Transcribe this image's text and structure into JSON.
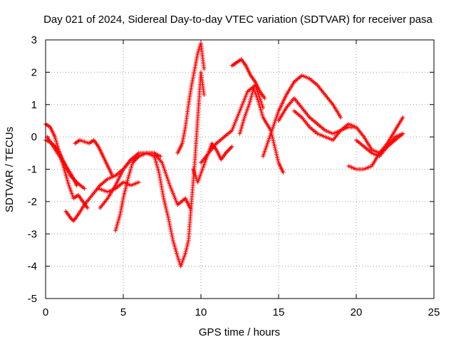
{
  "chart_data": {
    "type": "scatter",
    "title": "Day 021 of 2024, Sidereal Day-to-day VTEC variation (SDTVAR) for receiver pasa",
    "xlabel": "GPS time / hours",
    "ylabel": "SDTVAR / TECUs",
    "xlim": [
      0,
      25
    ],
    "ylim": [
      -5,
      3
    ],
    "x_ticks": [
      0,
      5,
      10,
      15,
      20,
      25
    ],
    "y_ticks": [
      -5,
      -4,
      -3,
      -2,
      -1,
      0,
      1,
      2,
      3
    ],
    "x_tick_labels": [
      "0",
      "5",
      "10",
      "15",
      "20",
      "25"
    ],
    "y_tick_labels": [
      "-5",
      "-4",
      "-3",
      "-2",
      "-1",
      "0",
      "1",
      "2",
      "3"
    ],
    "grid": true,
    "legend": "none",
    "marker": "plus",
    "color": "#ff0000",
    "series": [
      {
        "x": [
          0.0,
          0.3,
          0.6,
          0.9,
          1.2,
          1.5,
          1.8,
          2.1,
          2.4,
          2.7
        ],
        "y": [
          0.4,
          0.3,
          0.0,
          -0.5,
          -1.0,
          -1.5,
          -1.9,
          -1.8,
          -2.0,
          -2.2
        ]
      },
      {
        "x": [
          0.0,
          0.4,
          0.8,
          1.2,
          1.6,
          2.0,
          2.5
        ],
        "y": [
          -0.1,
          -0.2,
          -0.4,
          -0.8,
          -1.2,
          -1.4,
          -1.6
        ]
      },
      {
        "x": [
          0.1,
          0.5,
          0.9,
          1.3,
          1.7,
          2.0
        ],
        "y": [
          0.0,
          -0.3,
          -0.6,
          -0.9,
          -1.2,
          -1.5
        ]
      },
      {
        "x": [
          1.3,
          1.6,
          1.8,
          2.1,
          2.5,
          3.0,
          3.5,
          4.0,
          4.5,
          5.0,
          5.5,
          6.0,
          6.5,
          7.0
        ],
        "y": [
          -2.3,
          -2.5,
          -2.6,
          -2.4,
          -2.1,
          -1.8,
          -1.5,
          -1.3,
          -1.2,
          -1.0,
          -0.7,
          -0.5,
          -0.5,
          -0.6
        ]
      },
      {
        "x": [
          1.9,
          2.2,
          2.5,
          2.8,
          3.1,
          3.4,
          3.7,
          4.0,
          4.3
        ],
        "y": [
          -0.2,
          -0.1,
          -0.15,
          -0.2,
          -0.1,
          -0.3,
          -0.6,
          -0.9,
          -1.2
        ]
      },
      {
        "x": [
          3.4,
          4.0,
          4.5,
          5.0,
          5.5,
          6.0
        ],
        "y": [
          -1.6,
          -1.7,
          -1.6,
          -1.4,
          -1.5,
          -1.4
        ]
      },
      {
        "x": [
          3.5,
          4.0,
          4.5,
          5.0,
          5.5,
          6.0,
          6.5,
          7.0,
          7.5,
          8.0,
          8.5,
          9.0,
          9.3
        ],
        "y": [
          -2.2,
          -1.9,
          -1.5,
          -1.0,
          -0.7,
          -0.6,
          -0.5,
          -0.5,
          -0.8,
          -1.5,
          -2.1,
          -1.9,
          -2.2
        ]
      },
      {
        "x": [
          4.5,
          4.8,
          5.0,
          5.3,
          5.6,
          6.0,
          6.5,
          7.0,
          7.4
        ],
        "y": [
          -2.9,
          -2.4,
          -1.9,
          -1.3,
          -0.8,
          -0.6,
          -0.5,
          -0.5,
          -0.6
        ]
      },
      {
        "x": [
          7.0,
          7.3,
          7.6,
          7.9,
          8.2,
          8.5,
          8.7,
          9.0,
          9.2,
          9.4,
          9.6,
          9.8,
          10.0,
          10.2
        ],
        "y": [
          -0.6,
          -1.1,
          -1.9,
          -2.5,
          -3.2,
          -3.7,
          -4.0,
          -3.6,
          -3.2,
          -2.0,
          -0.8,
          0.6,
          2.0,
          1.3
        ]
      },
      {
        "x": [
          8.5,
          8.8,
          9.0,
          9.2,
          9.4,
          9.6,
          9.8,
          10.0,
          10.2
        ],
        "y": [
          -0.5,
          -0.2,
          0.3,
          1.0,
          1.6,
          2.1,
          2.6,
          2.9,
          2.1
        ]
      },
      {
        "x": [
          9.5,
          9.8,
          10.1,
          10.4,
          10.7,
          11.0,
          11.3,
          11.6,
          12.0
        ],
        "y": [
          -1.0,
          -1.4,
          -1.0,
          -0.6,
          -0.2,
          -0.4,
          -0.7,
          -0.5,
          -0.3
        ]
      },
      {
        "x": [
          10.0,
          10.5,
          11.0,
          11.5,
          12.0,
          12.5,
          13.0,
          13.5,
          14.0
        ],
        "y": [
          -0.8,
          -0.5,
          -0.2,
          0.0,
          0.2,
          0.8,
          1.4,
          1.6,
          0.9
        ]
      },
      {
        "x": [
          12.0,
          12.3,
          12.6,
          12.9,
          13.2,
          13.5,
          13.8,
          14.1
        ],
        "y": [
          2.2,
          2.3,
          2.4,
          2.2,
          1.9,
          1.7,
          1.4,
          1.2
        ]
      },
      {
        "x": [
          12.5,
          12.8,
          13.1,
          13.4,
          13.7,
          14.0,
          14.5,
          15.0,
          15.3
        ],
        "y": [
          0.1,
          0.6,
          1.0,
          1.5,
          1.1,
          0.6,
          0.2,
          -0.8,
          -1.1
        ]
      },
      {
        "x": [
          14.0,
          14.5,
          15.0,
          15.5,
          16.0,
          16.5,
          17.0,
          17.5,
          18.0,
          18.5,
          19.0
        ],
        "y": [
          -0.6,
          0.1,
          0.8,
          1.3,
          1.7,
          1.9,
          1.8,
          1.6,
          1.3,
          1.0,
          0.6
        ]
      },
      {
        "x": [
          15.0,
          15.5,
          16.0,
          16.5,
          17.0,
          17.5,
          18.0,
          18.5,
          19.0,
          19.5,
          20.0
        ],
        "y": [
          0.5,
          0.9,
          1.2,
          0.9,
          0.6,
          0.4,
          0.2,
          0.1,
          0.2,
          0.3,
          0.3
        ]
      },
      {
        "x": [
          16.0,
          16.5,
          17.0,
          17.5,
          18.0,
          18.5,
          19.0,
          19.5,
          20.0,
          20.5,
          21.0,
          21.5,
          22.0,
          22.5,
          23.0
        ],
        "y": [
          0.8,
          0.6,
          0.3,
          0.1,
          0.0,
          -0.1,
          0.2,
          0.4,
          0.3,
          0.0,
          -0.4,
          -0.5,
          -0.3,
          -0.1,
          0.1
        ]
      },
      {
        "x": [
          19.5,
          20.0,
          20.5,
          21.0,
          21.5,
          22.0,
          22.5,
          23.0
        ],
        "y": [
          -0.9,
          -1.0,
          -1.0,
          -0.9,
          -0.5,
          -0.2,
          0.2,
          0.6
        ]
      },
      {
        "x": [
          20.0,
          20.5,
          21.0,
          21.5,
          22.0,
          22.5,
          23.0
        ],
        "y": [
          -0.1,
          -0.3,
          -0.5,
          -0.6,
          -0.3,
          0.0,
          0.1
        ]
      }
    ]
  }
}
